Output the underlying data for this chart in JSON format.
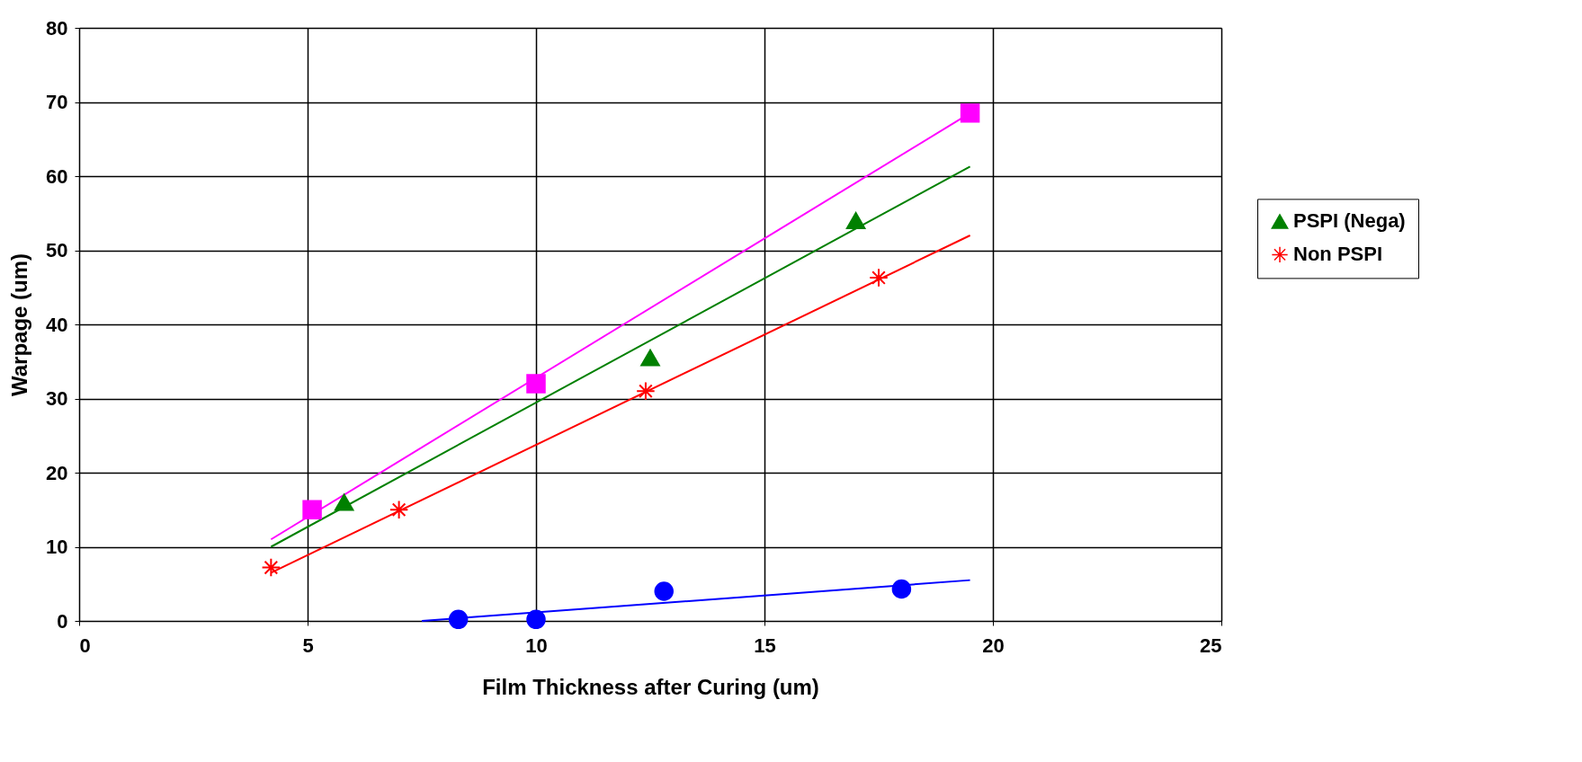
{
  "chart_data": {
    "type": "scatter",
    "xlabel": "Film Thickness after Curing (um)",
    "ylabel": "Warpage (um)",
    "xlim": [
      0,
      25
    ],
    "xticks": [
      0,
      5,
      10,
      15,
      20,
      25
    ],
    "ylim": [
      0,
      80
    ],
    "yticks": [
      0,
      10,
      20,
      30,
      40,
      50,
      60,
      70,
      80
    ],
    "grid": true,
    "legend": "right",
    "series": [
      {
        "color": "#0000ff",
        "marker": "circle",
        "x": [
          8.3,
          10,
          12.8,
          18
        ],
        "values": [
          0.2,
          0.2,
          4,
          4.3
        ]
      },
      {
        "color": "#ff00ff",
        "marker": "square",
        "x": [
          5.1,
          10,
          19.5
        ],
        "values": [
          15,
          32,
          68.5
        ]
      },
      {
        "name": "PSPI (Nega)",
        "color": "#008000",
        "marker": "triangle",
        "x": [
          5.8,
          12.5,
          17
        ],
        "values": [
          16,
          35.5,
          54
        ]
      },
      {
        "name": "Non PSPI",
        "color": "#ff0000",
        "marker": "cross",
        "x": [
          4.2,
          7,
          12.4,
          17.5
        ],
        "values": [
          7.2,
          15,
          31,
          46.3
        ]
      },
      {
        "type": "line",
        "color": "#0000ff",
        "marker": "none",
        "x": [
          7.5,
          19.5
        ],
        "values": [
          0,
          5.5
        ]
      },
      {
        "type": "line",
        "color": "#ff00ff",
        "marker": "none",
        "x": [
          4.2,
          19.5
        ],
        "values": [
          11,
          68.5
        ]
      },
      {
        "type": "line",
        "color": "#008000",
        "marker": "none",
        "x": [
          4.2,
          19.5
        ],
        "values": [
          10,
          61.3
        ]
      },
      {
        "type": "line",
        "color": "#ff0000",
        "marker": "none",
        "x": [
          4.2,
          19.5
        ],
        "values": [
          6.5,
          52
        ]
      }
    ]
  }
}
